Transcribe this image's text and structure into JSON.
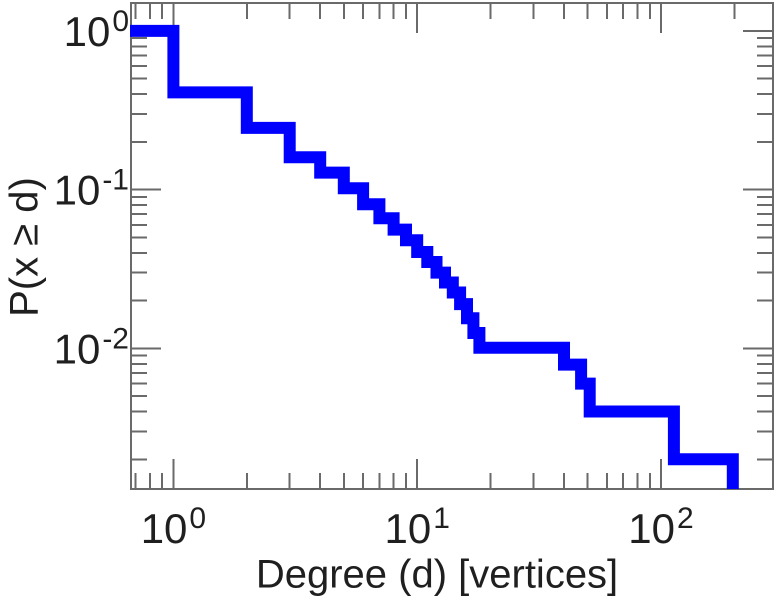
{
  "figure": {
    "background": "#ffffff",
    "frame_color": "#6a6a6a",
    "text_color": "#1f1f1f"
  },
  "chart_data": {
    "type": "line",
    "subtype": "step-ccdf",
    "title": "",
    "xlabel": "Degree (d) [vertices]",
    "ylabel": "P(x ≥ d)",
    "x_scale": "log",
    "y_scale": "log",
    "xlim": [
      0.67,
      288
    ],
    "ylim": [
      0.0013,
      1.5
    ],
    "grid": false,
    "legend": null,
    "x_major_ticks": [
      {
        "value": 1,
        "base": "10",
        "exponent": "0"
      },
      {
        "value": 10,
        "base": "10",
        "exponent": "1"
      },
      {
        "value": 100,
        "base": "10",
        "exponent": "2"
      }
    ],
    "y_major_ticks": [
      {
        "value": 1,
        "base": "10",
        "exponent": "0"
      },
      {
        "value": 0.1,
        "base": "10",
        "exponent": "-1"
      },
      {
        "value": 0.01,
        "base": "10",
        "exponent": "-2"
      }
    ],
    "series": [
      {
        "name": "degree-ccdf",
        "color": "#0000ff",
        "line_width": 12,
        "initial_P": 1.0,
        "drops": [
          [
            1,
            0.41
          ],
          [
            2,
            0.245
          ],
          [
            3,
            0.16
          ],
          [
            4,
            0.128
          ],
          [
            5,
            0.102
          ],
          [
            6,
            0.081
          ],
          [
            7,
            0.066
          ],
          [
            8,
            0.056
          ],
          [
            9,
            0.048
          ],
          [
            10,
            0.0405
          ],
          [
            11,
            0.035
          ],
          [
            12,
            0.03
          ],
          [
            13,
            0.026
          ],
          [
            14,
            0.0225
          ],
          [
            15,
            0.019
          ],
          [
            16,
            0.0155
          ],
          [
            17,
            0.0125
          ],
          [
            18,
            0.0101
          ],
          [
            40,
            0.0079
          ],
          [
            47,
            0.006
          ],
          [
            51,
            0.004
          ],
          [
            113,
            0.002
          ]
        ],
        "final_drop_at_d": 197
      }
    ]
  }
}
